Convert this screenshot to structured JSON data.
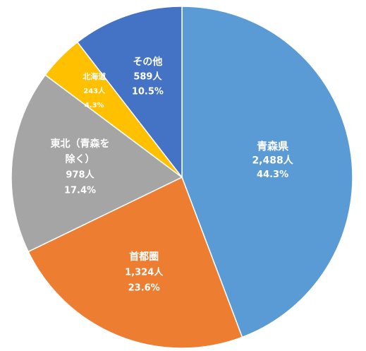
{
  "chart_data": {
    "type": "pie",
    "title": "",
    "start_angle_deg": 0,
    "direction": "clockwise",
    "slices": [
      {
        "category_lines": [
          "青森県"
        ],
        "count": "2,488人",
        "percent": "44.3%",
        "value": 44.3,
        "color": "#5B9BD5"
      },
      {
        "category_lines": [
          "首都圏"
        ],
        "count": "1,324人",
        "percent": "23.6%",
        "value": 23.6,
        "color": "#ED7D31"
      },
      {
        "category_lines": [
          "東北（青森を",
          "除く）"
        ],
        "count": "978人",
        "percent": "17.4%",
        "value": 17.4,
        "color": "#A5A5A5"
      },
      {
        "category_lines": [
          "北海道"
        ],
        "count": "243人",
        "percent": "4.3%",
        "value": 4.3,
        "color": "#FFC000"
      },
      {
        "category_lines": [
          "その他"
        ],
        "count": "589人",
        "percent": "10.5%",
        "value": 10.5,
        "color": "#4472C4"
      }
    ]
  }
}
